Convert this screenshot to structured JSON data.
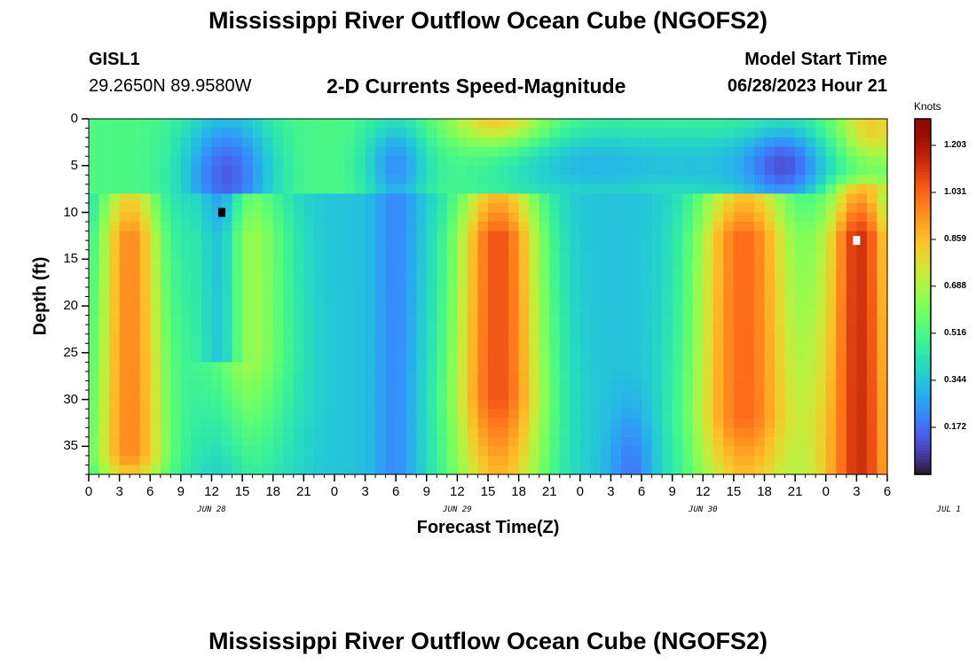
{
  "header": {
    "title": "Mississippi River Outflow Ocean Cube (NGOFS2)",
    "station_id": "GISL1",
    "station_coords": "29.2650N  89.9580W",
    "subtitle": "2-D Currents Speed-Magnitude",
    "model_start_label": "Model Start Time",
    "model_start_value": "06/28/2023 Hour 21"
  },
  "footer": {
    "title": "Mississippi River Outflow Ocean Cube (NGOFS2)"
  },
  "chart_data": {
    "type": "heatmap",
    "title": "2-D Currents Speed-Magnitude",
    "xlabel": "Forecast Time(Z)",
    "ylabel": "Depth (ft)",
    "x_tick_labels": [
      "0",
      "3",
      "6",
      "9",
      "12",
      "15",
      "18",
      "21",
      "0",
      "3",
      "6",
      "9",
      "12",
      "15",
      "18",
      "21",
      "0",
      "3",
      "6",
      "9",
      "12",
      "15",
      "18",
      "21",
      "0",
      "3",
      "6"
    ],
    "x_date_labels": [
      "JUN 28",
      "JUN 29",
      "JUN 30",
      "JUL 1"
    ],
    "x_date_positions_hours": [
      12,
      36,
      60,
      84
    ],
    "x_range_hours": [
      0,
      78
    ],
    "y_ticks": [
      0,
      5,
      10,
      15,
      20,
      25,
      30,
      35
    ],
    "y_range": [
      0,
      38
    ],
    "y_inverted": true,
    "colorbar": {
      "unit": "Knots",
      "range": [
        0.0,
        1.3
      ],
      "tick_values": [
        0.172,
        0.344,
        0.516,
        0.688,
        0.859,
        1.031,
        1.203
      ],
      "tick_labels": [
        "0.172",
        "0.344",
        "0.516",
        "0.688",
        "0.859",
        "1.031",
        "1.203"
      ],
      "colormap": "turbo"
    },
    "markers": [
      {
        "label": "min",
        "hour": 13,
        "depth": 10,
        "color": "#000000"
      },
      {
        "label": "max",
        "hour": 75,
        "depth": 13,
        "color": "#ffffff"
      }
    ],
    "field_description": {
      "surface_layer_depth": 8.5,
      "high_speed_cores_center_hours": [
        4,
        15,
        40,
        64,
        75
      ],
      "low_speed_columns_center_hours": [
        13,
        30,
        53,
        73
      ]
    }
  }
}
